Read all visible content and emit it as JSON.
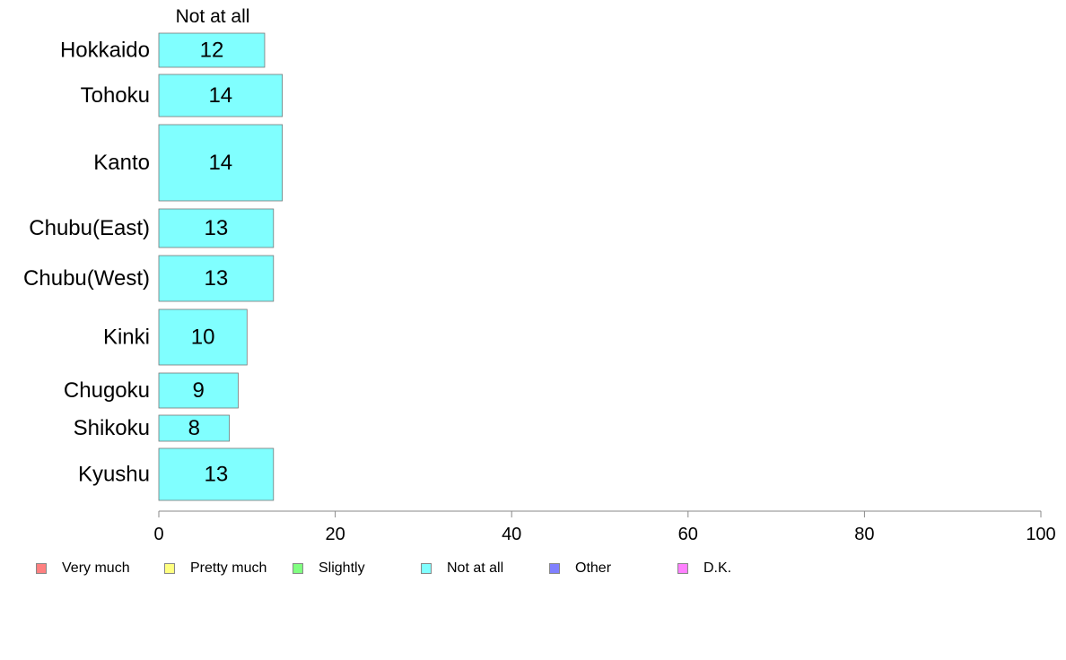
{
  "chart_data": {
    "type": "bar",
    "orientation": "horizontal",
    "stacked": true,
    "title": "Not at all",
    "xlabel": "",
    "ylabel": "",
    "xlim": [
      0,
      100
    ],
    "xticks": [
      0,
      20,
      40,
      60,
      80,
      100
    ],
    "grid": false,
    "legend_position": "bottom",
    "categories": [
      "Hokkaido",
      "Tohoku",
      "Kanto",
      "Chubu(East)",
      "Chubu(West)",
      "Kinki",
      "Chugoku",
      "Shikoku",
      "Kyushu"
    ],
    "series": [
      {
        "name": "Not at all",
        "color": "#80ffff",
        "values": [
          12,
          14,
          14,
          13,
          13,
          10,
          9,
          8,
          13
        ]
      }
    ],
    "legend": [
      {
        "label": "Very much",
        "color": "#ff8080"
      },
      {
        "label": "Pretty much",
        "color": "#ffff80"
      },
      {
        "label": "Slightly",
        "color": "#80ff80"
      },
      {
        "label": "Not at all",
        "color": "#80ffff"
      },
      {
        "label": "Other",
        "color": "#8080ff"
      },
      {
        "label": "D.K.",
        "color": "#ff80ff"
      }
    ]
  }
}
